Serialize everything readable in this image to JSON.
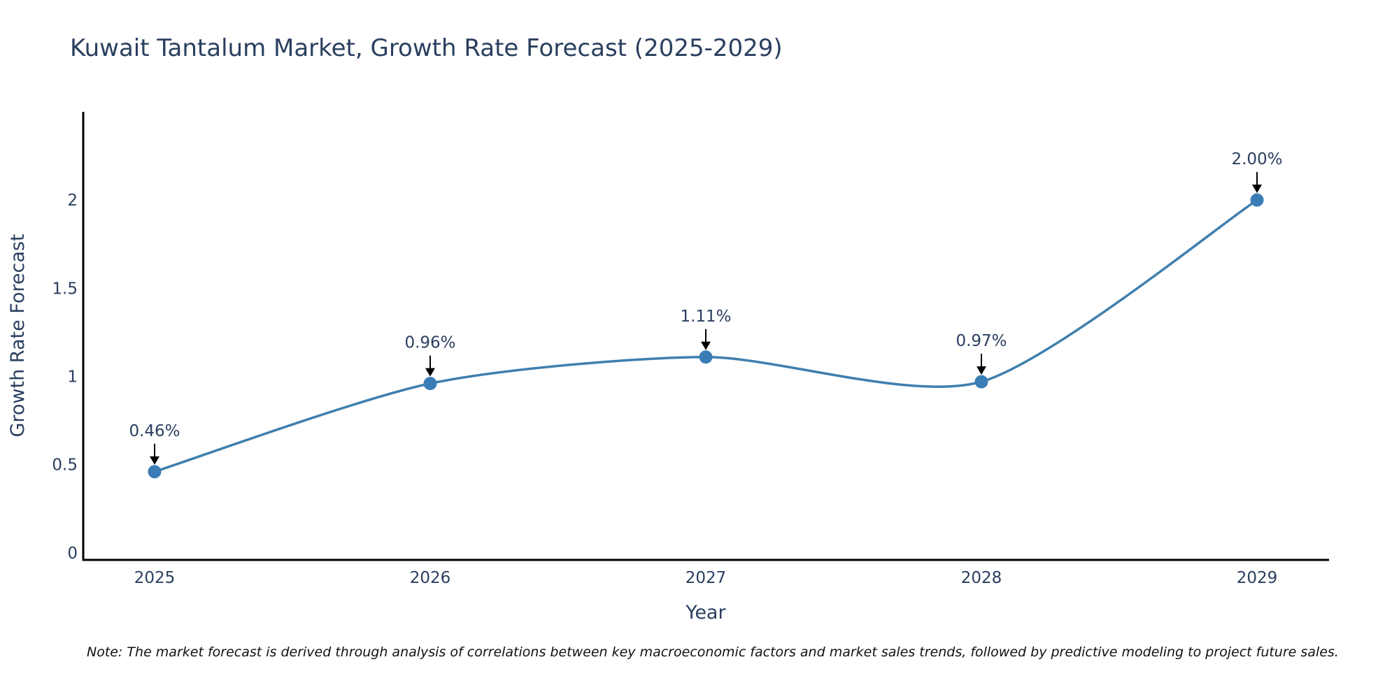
{
  "chart_data": {
    "type": "line",
    "title": "Kuwait Tantalum Market, Growth Rate Forecast (2025-2029)",
    "xlabel": "Year",
    "ylabel": "Growth Rate Forecast",
    "categories": [
      "2025",
      "2026",
      "2027",
      "2028",
      "2029"
    ],
    "values": [
      0.46,
      0.96,
      1.11,
      0.97,
      2.0
    ],
    "data_labels": [
      "0.46%",
      "0.96%",
      "1.11%",
      "0.97%",
      "2.00%"
    ],
    "y_ticks": [
      0,
      0.5,
      1,
      1.5,
      2
    ],
    "y_tick_labels": [
      "0",
      "0.5",
      "1",
      "1.5",
      "2"
    ],
    "ylim": [
      -0.04,
      2.5
    ],
    "grid": false,
    "legend": "none",
    "note": "Note: The market forecast is derived through analysis of correlations between key macroeconomic factors and market sales trends, followed by predictive modeling to project future sales."
  },
  "colors": {
    "line": "#3f7fae",
    "marker": "#3a7db6",
    "text": "#2a3f5f",
    "axis": "#000000",
    "arrow": "#000000"
  }
}
